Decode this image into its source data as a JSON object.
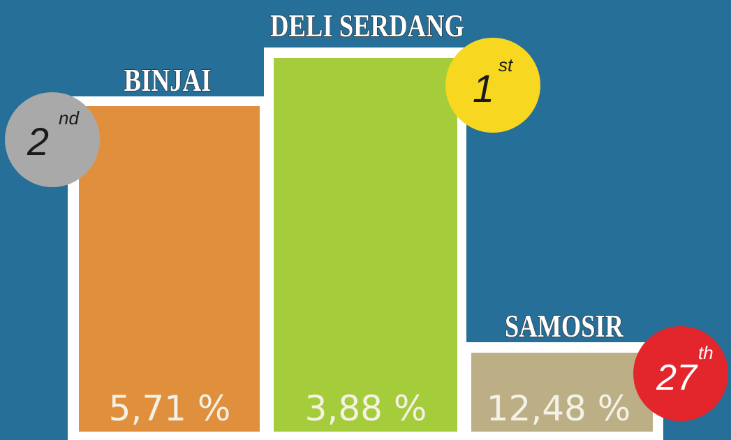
{
  "podium": [
    {
      "name": "BINJAI",
      "rank": "2",
      "suffix": "nd",
      "value": "5,71 %"
    },
    {
      "name": "DELI SERDANG",
      "rank": "1",
      "suffix": "st",
      "value": "3,88 %"
    },
    {
      "name": "SAMOSIR",
      "rank": "27",
      "suffix": "th",
      "value": "12,48 %"
    }
  ]
}
